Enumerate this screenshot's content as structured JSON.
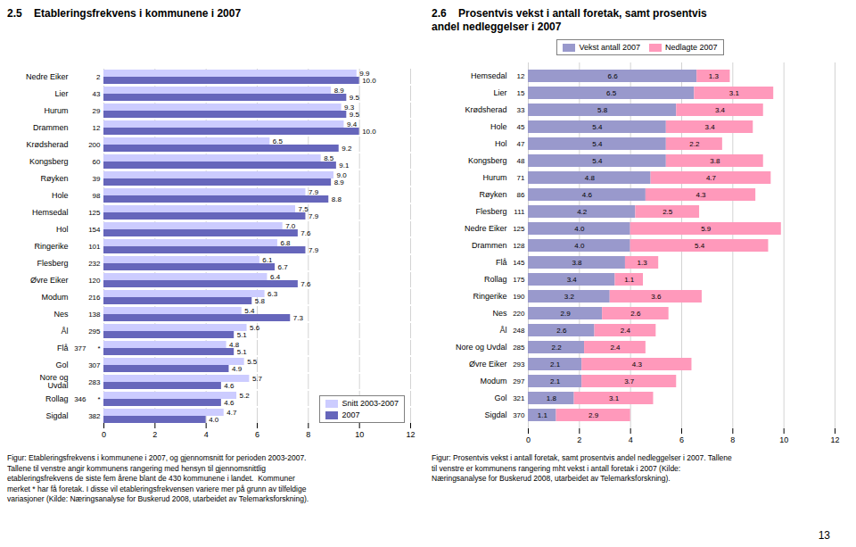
{
  "chart_data": [
    {
      "type": "bar",
      "orientation": "horizontal",
      "title": "2.5    Etableringsfrekvens i kommunene i 2007",
      "categories": [
        "Nedre Eiker",
        "Lier",
        "Hurum",
        "Drammen",
        "Krødsherad",
        "Kongsberg",
        "Røyken",
        "Hole",
        "Hemsedal",
        "Hol",
        "Ringerike",
        "Flesberg",
        "Øvre Eiker",
        "Modum",
        "Nes",
        "Ål",
        "Flå",
        "Gol",
        "Nore og\nUvdal",
        "Rollag",
        "Sigdal"
      ],
      "series": [
        {
          "name": "Snitt 2003-2007",
          "color": "#CCCCFF",
          "values": [
            9.9,
            8.9,
            9.3,
            9.4,
            6.5,
            8.5,
            9.0,
            7.9,
            7.5,
            7.0,
            6.8,
            6.1,
            6.4,
            6.3,
            5.4,
            5.6,
            4.8,
            5.5,
            5.7,
            5.2,
            4.7
          ],
          "value_labels": [
            "9.9",
            "8.9",
            "9.3",
            "9.4",
            "6.5",
            "8.5",
            "9.0",
            "7.9",
            "7.5",
            "7.0",
            "6.8",
            "6.1",
            "6.4",
            "6.3",
            "5.4",
            "5.6",
            "4.8",
            "5.5",
            "5.7",
            "5.2",
            "4.7"
          ]
        },
        {
          "name": "2007",
          "color": "#6666BB",
          "values": [
            10.0,
            9.5,
            9.5,
            10.0,
            9.2,
            9.1,
            8.9,
            8.8,
            7.9,
            7.6,
            7.9,
            6.7,
            7.6,
            5.8,
            7.3,
            5.1,
            5.1,
            4.9,
            4.6,
            4.6,
            4.0
          ],
          "value_labels": [
            "10.0",
            "9.5",
            "9.5",
            "10.0",
            "9.2",
            "9.1",
            "8.9",
            "8.8",
            "7.9",
            "7.6",
            "7.9",
            "6.7",
            "7.6",
            "5.8",
            "7.3",
            "5.1",
            "5.1",
            "4.9",
            "4.6",
            "4.6",
            "4.0"
          ]
        }
      ],
      "xlim": [
        0,
        12
      ],
      "xticks": [
        0,
        2,
        4,
        6,
        8,
        10,
        12
      ],
      "grid": true,
      "legend": "lower right",
      "data_labels": true,
      "annotations": [
        {
          "category": "Nedre Eiker",
          "text": "2"
        },
        {
          "category": "Lier",
          "text": "43"
        },
        {
          "category": "Hurum",
          "text": "29"
        },
        {
          "category": "Drammen",
          "text": "12"
        },
        {
          "category": "Krødsherad",
          "text": "200"
        },
        {
          "category": "Kongsberg",
          "text": "60"
        },
        {
          "category": "Røyken",
          "text": "39"
        },
        {
          "category": "Hole",
          "text": "98"
        },
        {
          "category": "Hemsedal",
          "text": "125"
        },
        {
          "category": "Hol",
          "text": "154"
        },
        {
          "category": "Ringerike",
          "text": "101"
        },
        {
          "category": "Flesberg",
          "text": "232"
        },
        {
          "category": "Øvre Eiker",
          "text": "120"
        },
        {
          "category": "Modum",
          "text": "216"
        },
        {
          "category": "Nes",
          "text": "138"
        },
        {
          "category": "Ål",
          "text": "295"
        },
        {
          "category": "Flå",
          "text": "*"
        },
        {
          "category": "Flå",
          "text": "377"
        },
        {
          "category": "Gol",
          "text": "307"
        },
        {
          "category": "Nore og\nUvdal",
          "text": "283"
        },
        {
          "category": "Rollag",
          "text": "*"
        },
        {
          "category": "Rollag",
          "text": "346"
        },
        {
          "category": "Sigdal",
          "text": "382"
        }
      ],
      "caption": "Figur: Etableringsfrekvens i kommunene i 2007, og gjennomsnitt for perioden 2003-2007.\nTallene til venstre angir kommunens rangering med hensyn til gjennomsnittlig\netableringsfrekvens de siste fem årene blant de 430 kommunene i landet.  Kommuner\nmerket * har få foretak. I disse vil etableringsfrekvensen variere mer på grunn av tilfeldige\nvariasjoner (Kilde: Næringsanalyse for Buskerud 2008, utarbeidet av Telemarksforskning)."
    },
    {
      "type": "bar",
      "orientation": "horizontal",
      "stacked": true,
      "title": "2.6    Prosentvis vekst i antall foretak, samt prosentvis\nandel nedleggelser i 2007",
      "categories": [
        "Hemsedal",
        "Lier",
        "Krødsherad",
        "Hole",
        "Hol",
        "Kongsberg",
        "Hurum",
        "Røyken",
        "Flesberg",
        "Nedre Eiker",
        "Drammen",
        "Flå",
        "Rollag",
        "Ringerike",
        "Nes",
        "Ål",
        "Nore og Uvdal",
        "Øvre Eiker",
        "Modum",
        "Gol",
        "Sigdal"
      ],
      "series": [
        {
          "name": "Vekst antall 2007",
          "color": "#9999CC",
          "values": [
            6.6,
            6.5,
            5.8,
            5.4,
            5.4,
            5.4,
            4.8,
            4.6,
            4.2,
            4.0,
            4.0,
            3.8,
            3.4,
            3.2,
            2.9,
            2.6,
            2.2,
            2.1,
            2.1,
            1.8,
            1.1
          ],
          "value_labels": [
            "6.6",
            "6.5",
            "5.8",
            "5.4",
            "5.4",
            "5.4",
            "4.8",
            "4.6",
            "4.2",
            "4.0",
            "4.0",
            "3.8",
            "3.4",
            "3.2",
            "2.9",
            "2.6",
            "2.2",
            "2.1",
            "2.1",
            "1.8",
            "1.1"
          ]
        },
        {
          "name": "Nedlagte 2007",
          "color": "#FF99BB",
          "values": [
            1.3,
            3.1,
            3.4,
            3.4,
            2.2,
            3.8,
            4.7,
            4.3,
            2.5,
            5.9,
            5.4,
            1.3,
            1.1,
            3.6,
            2.6,
            2.4,
            2.4,
            4.3,
            3.7,
            3.1,
            2.9
          ],
          "value_labels": [
            "1.3",
            "3.1",
            "3.4",
            "3.4",
            "2.2",
            "3.8",
            "4.7",
            "4.3",
            "2.5",
            "5.9",
            "5.4",
            "1.3",
            "1.1",
            "3.6",
            "2.6",
            "2.4",
            "2.4",
            "4.3",
            "3.7",
            "3.1",
            "2.9"
          ]
        }
      ],
      "xlim": [
        0,
        12
      ],
      "xticks": [
        0,
        2,
        4,
        6,
        8,
        10,
        12
      ],
      "grid": true,
      "legend": "upper center",
      "data_labels": true,
      "annotations": [
        {
          "category": "Hemsedal",
          "text": "12"
        },
        {
          "category": "Lier",
          "text": "15"
        },
        {
          "category": "Krødsherad",
          "text": "33"
        },
        {
          "category": "Hole",
          "text": "45"
        },
        {
          "category": "Hol",
          "text": "47"
        },
        {
          "category": "Kongsberg",
          "text": "48"
        },
        {
          "category": "Hurum",
          "text": "71"
        },
        {
          "category": "Røyken",
          "text": "86"
        },
        {
          "category": "Flesberg",
          "text": "111"
        },
        {
          "category": "Nedre Eiker",
          "text": "125"
        },
        {
          "category": "Drammen",
          "text": "128"
        },
        {
          "category": "Flå",
          "text": "145"
        },
        {
          "category": "Rollag",
          "text": "175"
        },
        {
          "category": "Ringerike",
          "text": "190"
        },
        {
          "category": "Nes",
          "text": "220"
        },
        {
          "category": "Ål",
          "text": "248"
        },
        {
          "category": "Nore og Uvdal",
          "text": "285"
        },
        {
          "category": "Øvre Eiker",
          "text": "293"
        },
        {
          "category": "Modum",
          "text": "297"
        },
        {
          "category": "Gol",
          "text": "321"
        },
        {
          "category": "Sigdal",
          "text": "370"
        },
        {
          "text": "13"
        }
      ],
      "caption": "Figur: Prosentvis vekst i antall foretak, samt prosentvis andel nedleggelser i 2007. Tallene\ntil venstre er kommunens rangering mht vekst i antall foretak i 2007 (Kilde:\nNæringsanalyse for Buskerud 2008, utarbeidet av Telemarksforskning)."
    }
  ]
}
